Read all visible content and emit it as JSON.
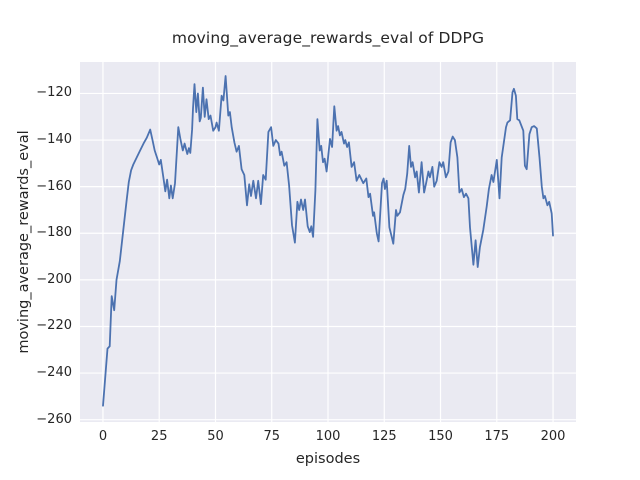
{
  "chart_data": {
    "type": "line",
    "title": "moving_average_rewards_eval of DDPG",
    "xlabel": "episodes",
    "ylabel": "moving_average_rewards_eval",
    "legend": null,
    "grid": true,
    "style": "seaborn-darkgrid",
    "colors": {
      "line": "#4c72b0",
      "plot_background": "#eaeaf2",
      "grid": "#ffffff",
      "figure_background": "#ffffff",
      "text": "#262626"
    },
    "xlim": [
      -10.2,
      210.2
    ],
    "ylim": [
      -261,
      -106.5
    ],
    "x_tick_values": [
      0,
      25,
      50,
      75,
      100,
      125,
      150,
      175,
      200
    ],
    "x_tick_labels": [
      "0",
      "25",
      "50",
      "75",
      "100",
      "125",
      "150",
      "175",
      "200"
    ],
    "y_tick_values": [
      -120,
      -140,
      -160,
      -180,
      -200,
      -220,
      -240,
      -260
    ],
    "y_tick_labels": [
      "−120",
      "−140",
      "−160",
      "−180",
      "−200",
      "−220",
      "−240",
      "−260"
    ],
    "series": [
      {
        "name": "moving_average_rewards_eval",
        "x": [
          0,
          2,
          3,
          3.9,
          5,
          6,
          7.5,
          9,
          10.5,
          11.5,
          12.5,
          13.5,
          15,
          16.5,
          18,
          19.5,
          21,
          22,
          23,
          24,
          25,
          25.7,
          27,
          27.7,
          28.5,
          29.5,
          30.2,
          31,
          32,
          33.5,
          34.5,
          35.5,
          36.3,
          37.5,
          38.2,
          38.8,
          39.6,
          40,
          40.7,
          41.5,
          42.2,
          43,
          43.5,
          44.4,
          45.2,
          46,
          47,
          47.8,
          49,
          50,
          50.5,
          51.5,
          52.7,
          53.5,
          54.5,
          55.7,
          56.4,
          57.2,
          58.4,
          59.4,
          60.4,
          61.6,
          62.8,
          64,
          65,
          65.8,
          66.8,
          68,
          69,
          70.2,
          71.2,
          72.3,
          73.5,
          74.7,
          75.7,
          76.8,
          78,
          78.7,
          79.4,
          80.6,
          81.6,
          82.7,
          84,
          85.3,
          86.4,
          87.2,
          88,
          89,
          89.8,
          91,
          91.9,
          92.6,
          93.4,
          94.4,
          95.3,
          96.3,
          97,
          97.8,
          98.5,
          99.4,
          100.9,
          101.8,
          102.8,
          103.8,
          104.5,
          105.3,
          106,
          107.1,
          107.7,
          108.5,
          109.3,
          110.5,
          111.6,
          112.7,
          113.9,
          115.7,
          117,
          118,
          118.7,
          120,
          120.5,
          121.7,
          122.5,
          124,
          124.7,
          125.3,
          126.1,
          127.3,
          128.3,
          129,
          130.2,
          130.8,
          132,
          133.5,
          134.3,
          135.2,
          136.1,
          136.9,
          137.6,
          138.7,
          139.4,
          140.4,
          141.6,
          142.7,
          143.6,
          144.6,
          145.3,
          146.4,
          147.2,
          148.3,
          149.5,
          150.5,
          151.2,
          152.4,
          153.5,
          154.5,
          155.4,
          156.4,
          157.5,
          158.4,
          159.4,
          160.4,
          161.3,
          162.4,
          163.1,
          164.6,
          165.6,
          166.5,
          167.5,
          169,
          170.5,
          171.5,
          172.7,
          173.5,
          175,
          176.2,
          177.2,
          179.1,
          179.7,
          180.9,
          182,
          182.6,
          183.5,
          184.1,
          185,
          186.8,
          187.5,
          188.3,
          189.5,
          190.5,
          191.6,
          192.8,
          194,
          195,
          195.7,
          196.4,
          197.5,
          198.3,
          199.4,
          200
        ],
        "y": [
          -254,
          -229.5,
          -228.5,
          -207,
          -213,
          -200,
          -192,
          -179,
          -166,
          -158,
          -153,
          -150.5,
          -147.5,
          -144.5,
          -141.5,
          -139,
          -135.5,
          -140,
          -144.5,
          -147.5,
          -150.5,
          -148.5,
          -157,
          -162,
          -157,
          -165,
          -159.5,
          -165,
          -158.5,
          -134.5,
          -140,
          -144.5,
          -141.5,
          -146,
          -143.5,
          -145.5,
          -135.5,
          -126.5,
          -116,
          -128,
          -120,
          -132,
          -130.5,
          -117.5,
          -130,
          -122.5,
          -131,
          -129.5,
          -136,
          -134.5,
          -132.5,
          -136,
          -121,
          -123,
          -112.5,
          -129.5,
          -128,
          -134.5,
          -141,
          -145,
          -142.5,
          -152.5,
          -155,
          -168,
          -159,
          -164,
          -157.5,
          -165,
          -157.5,
          -167.5,
          -155,
          -157,
          -136.5,
          -134.5,
          -142.5,
          -140,
          -141.5,
          -146.5,
          -145,
          -151,
          -149.5,
          -159.5,
          -176.5,
          -184,
          -166.5,
          -170,
          -165.5,
          -170,
          -165.5,
          -177,
          -179.5,
          -177,
          -181.5,
          -161.5,
          -131,
          -144.5,
          -142.5,
          -149.5,
          -148,
          -153.5,
          -139.5,
          -143,
          -125.5,
          -136,
          -134,
          -138,
          -136.5,
          -141.5,
          -140,
          -143,
          -141,
          -151.5,
          -149.5,
          -157.5,
          -155,
          -158.5,
          -156.5,
          -164.5,
          -163,
          -172.5,
          -171,
          -180,
          -183.5,
          -158.5,
          -156.5,
          -161,
          -157.5,
          -177.5,
          -181.5,
          -184.5,
          -170,
          -172.5,
          -171,
          -163.5,
          -161,
          -154.5,
          -142.5,
          -151.5,
          -149.5,
          -156,
          -153.5,
          -162.5,
          -149.5,
          -162.5,
          -158.5,
          -153.5,
          -156,
          -151.5,
          -160,
          -157.5,
          -149.5,
          -151.5,
          -149.5,
          -156,
          -153.5,
          -141,
          -138.5,
          -140,
          -147.5,
          -162.5,
          -161,
          -164.5,
          -163,
          -165,
          -177.5,
          -193.5,
          -183,
          -194.5,
          -186,
          -178.5,
          -168.5,
          -161,
          -155,
          -158,
          -148.5,
          -165,
          -147.5,
          -134.5,
          -132.5,
          -131.5,
          -119.5,
          -118,
          -121,
          -131,
          -131.5,
          -136,
          -151,
          -152.5,
          -137.5,
          -134.5,
          -134,
          -135,
          -147.5,
          -160,
          -165,
          -164,
          -168,
          -166.5,
          -171.5,
          -181
        ]
      }
    ]
  }
}
